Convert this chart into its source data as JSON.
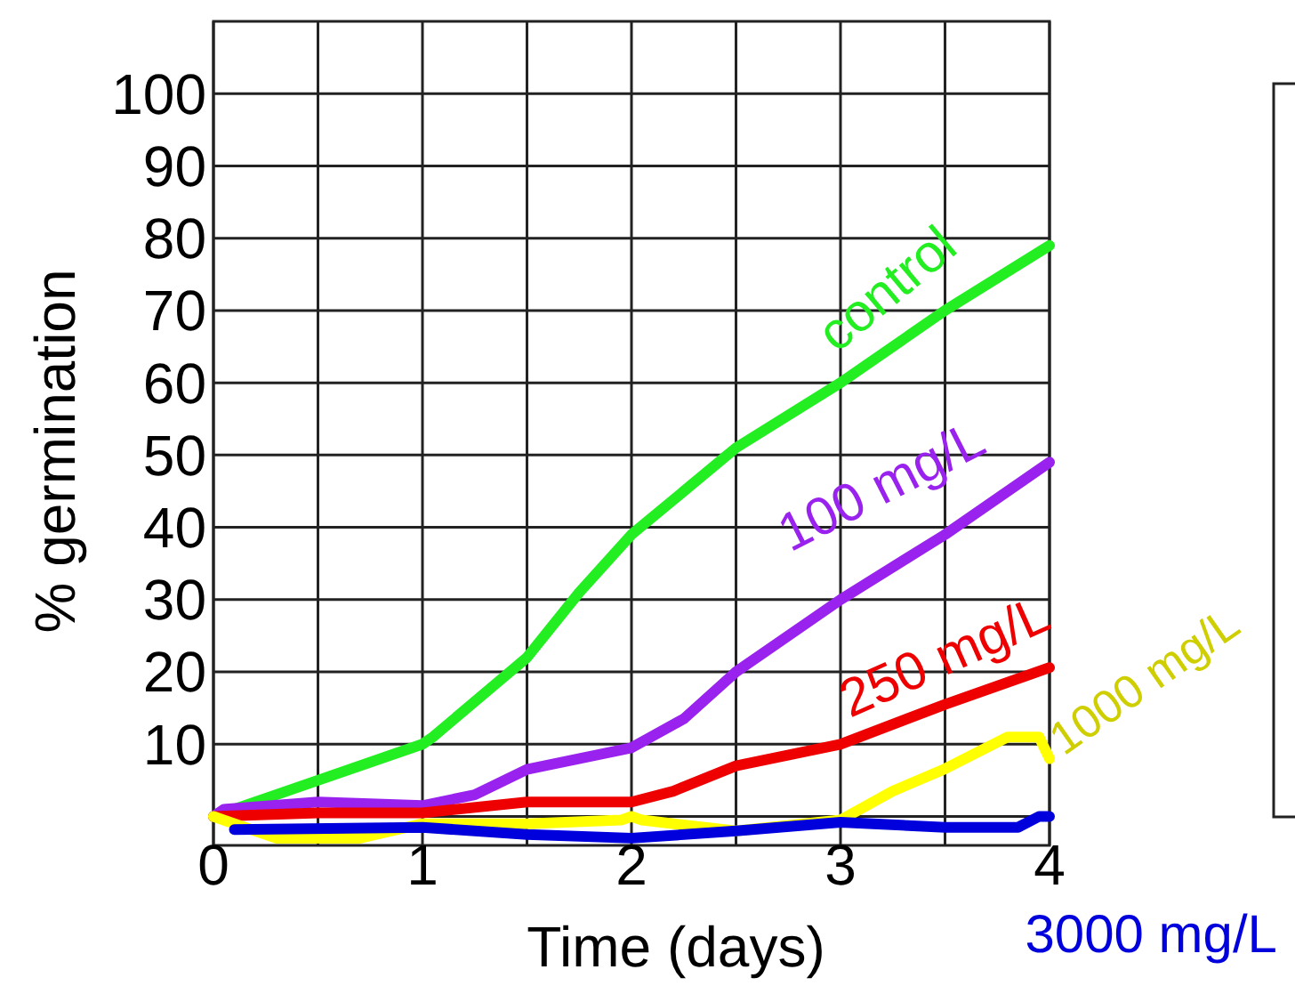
{
  "chart_data": {
    "type": "line",
    "xlabel": "Time (days)",
    "ylabel": "% germination",
    "xlim": [
      0,
      4
    ],
    "ylim": [
      -4,
      110
    ],
    "xticks": [
      0,
      {
        "value": 0.5,
        "label": null
      },
      1,
      {
        "value": 1.5,
        "label": null
      },
      2,
      {
        "value": 2.5,
        "label": null
      },
      3,
      {
        "value": 3.5,
        "label": null
      },
      4
    ],
    "yticks": [
      {
        "value": 0,
        "label": null
      },
      10,
      20,
      30,
      40,
      50,
      60,
      70,
      80,
      90,
      100
    ],
    "grid": true,
    "line_style": "solid",
    "series": [
      {
        "name": "control",
        "color": "#22ee22",
        "x": [
          0,
          0.5,
          1,
          1.05,
          1.5,
          1.75,
          2,
          2.5,
          3,
          3.5,
          4
        ],
        "values": [
          0,
          5,
          10,
          11,
          22,
          31,
          39,
          51,
          60,
          70,
          79
        ]
      },
      {
        "name": "100 mg/L",
        "color": "#9922ee",
        "x": [
          0,
          0.05,
          0.5,
          1,
          1.25,
          1.5,
          2,
          2.25,
          2.5,
          3,
          3.5,
          4
        ],
        "values": [
          0,
          1,
          2,
          1.5,
          3,
          6.5,
          9.5,
          13.5,
          20,
          30,
          39,
          49
        ]
      },
      {
        "name": "250 mg/L",
        "color": "#ee0000",
        "x": [
          0,
          0.5,
          1,
          1.5,
          2,
          2.2,
          2.5,
          3,
          3.5,
          4
        ],
        "values": [
          0,
          0.5,
          0.5,
          2,
          2,
          3.5,
          7,
          10,
          15.5,
          20.6
        ]
      },
      {
        "name": "1000 mg/L",
        "color": "#ffff00",
        "x": [
          0,
          0.3,
          0.7,
          1,
          1.5,
          1.95,
          2,
          2.05,
          2.5,
          3,
          3.25,
          3.5,
          3.8,
          3.95,
          4
        ],
        "values": [
          0,
          -3,
          -3,
          -1,
          -1,
          -0.5,
          0,
          -0.5,
          -2,
          -0.5,
          3.5,
          6.6,
          11,
          11,
          8
        ]
      },
      {
        "name": "3000 mg/L",
        "color": "#0000dd",
        "x": [
          0.1,
          1,
          1.5,
          2,
          2.5,
          3,
          3.5,
          3.85,
          3.95,
          4
        ],
        "values": [
          -1.8,
          -1.5,
          -2.5,
          -3,
          -2,
          -0.8,
          -1.5,
          -1.5,
          0,
          0
        ]
      }
    ]
  }
}
